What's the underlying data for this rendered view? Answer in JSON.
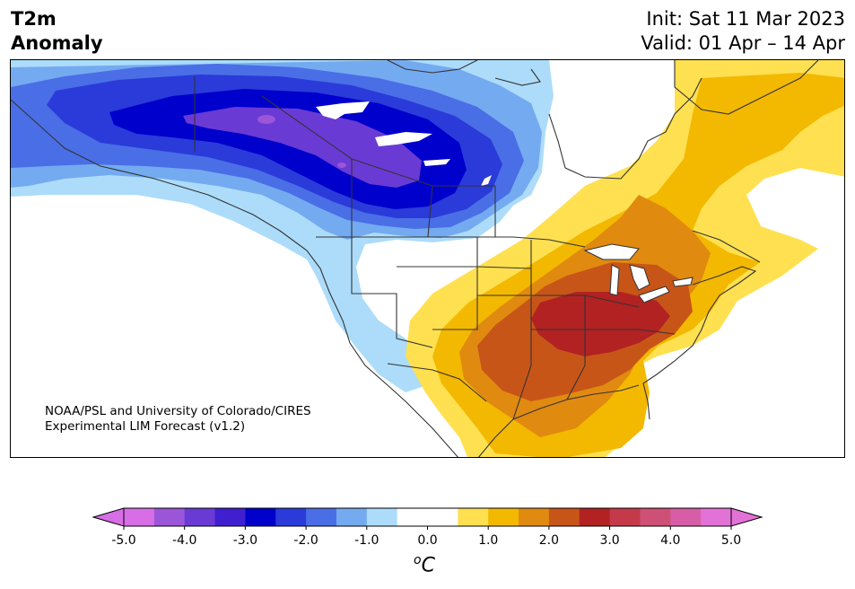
{
  "header": {
    "title_line1": "T2m",
    "title_line2": "Anomaly",
    "init": "Init: Sat 11 Mar 2023",
    "valid": "Valid: 01 Apr – 14 Apr"
  },
  "credit": {
    "line1": "NOAA/PSL and University of Colorado/CIRES",
    "line2": "Experimental LIM Forecast (v1.2)"
  },
  "colorbar": {
    "units_symbol": "o",
    "units_letter": "C",
    "tick_labels": [
      "-5.0",
      "-4.0",
      "-3.0",
      "-2.0",
      "-1.0",
      "0.0",
      "1.0",
      "2.0",
      "3.0",
      "4.0",
      "5.0"
    ],
    "colors": [
      "#d76ee6",
      "#9b55d9",
      "#6a3ad5",
      "#3f1fd0",
      "#0000cd",
      "#2a3bd9",
      "#4a6ee6",
      "#74aaf0",
      "#acdcfa",
      "#ffffff",
      "#ffffff",
      "#ffe050",
      "#f3b800",
      "#e08a10",
      "#c85518",
      "#b22222",
      "#c43a4a",
      "#ce5076",
      "#d75ea6",
      "#e372d6"
    ],
    "under_color": "#d76ee6",
    "over_color": "#e372d6"
  },
  "map": {
    "land_outline_color": "#333333",
    "region_colors": {
      "deep_purple": "#6a3ad5",
      "dark_blue": "#0000cd",
      "blue": "#2a3bd9",
      "mid_blue": "#4a6ee6",
      "light_blue": "#74aaf0",
      "pale_blue": "#acdcfa",
      "yellow": "#ffe050",
      "gold": "#f3b800",
      "orange": "#e08a10",
      "dark_orange": "#c85518",
      "red": "#b22222"
    }
  }
}
